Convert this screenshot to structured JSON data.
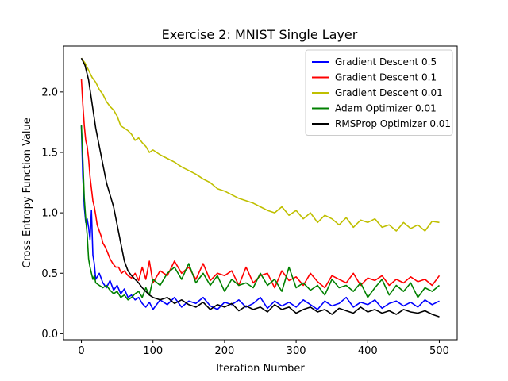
{
  "chart_data": {
    "type": "line",
    "title": "Exercise 2: MNIST Single Layer",
    "xlabel": "Iteration Number",
    "ylabel": "Cross Entropy Function Value",
    "xlim": [
      -25,
      525
    ],
    "ylim": [
      -0.05,
      2.38
    ],
    "xticks": [
      0,
      100,
      200,
      300,
      400,
      500
    ],
    "yticks": [
      0.0,
      0.5,
      1.0,
      1.5,
      2.0
    ],
    "xtick_labels": [
      "0",
      "100",
      "200",
      "300",
      "400",
      "500"
    ],
    "ytick_labels": [
      "0.0",
      "0.5",
      "1.0",
      "1.5",
      "2.0"
    ],
    "legend_position": "top-right",
    "grid": false,
    "series": [
      {
        "name": "Gradient Descent 0.5",
        "color": "#0000ff",
        "x": [
          0,
          2,
          4,
          6,
          8,
          10,
          12,
          14,
          16,
          18,
          20,
          25,
          30,
          35,
          40,
          45,
          50,
          55,
          60,
          65,
          70,
          75,
          80,
          85,
          90,
          95,
          100,
          110,
          120,
          130,
          140,
          150,
          160,
          170,
          180,
          190,
          200,
          210,
          220,
          230,
          240,
          250,
          260,
          270,
          280,
          290,
          300,
          310,
          320,
          330,
          340,
          350,
          360,
          370,
          380,
          390,
          400,
          410,
          420,
          430,
          440,
          450,
          460,
          470,
          480,
          490,
          500
        ],
        "y": [
          1.72,
          1.3,
          1.05,
          0.92,
          0.95,
          0.88,
          0.78,
          1.02,
          0.65,
          0.58,
          0.45,
          0.5,
          0.42,
          0.38,
          0.44,
          0.36,
          0.4,
          0.33,
          0.37,
          0.3,
          0.32,
          0.28,
          0.3,
          0.25,
          0.22,
          0.26,
          0.2,
          0.28,
          0.24,
          0.3,
          0.22,
          0.27,
          0.25,
          0.3,
          0.23,
          0.2,
          0.26,
          0.24,
          0.28,
          0.22,
          0.25,
          0.3,
          0.21,
          0.27,
          0.23,
          0.26,
          0.22,
          0.28,
          0.24,
          0.2,
          0.27,
          0.23,
          0.25,
          0.3,
          0.22,
          0.26,
          0.24,
          0.28,
          0.21,
          0.25,
          0.27,
          0.23,
          0.26,
          0.22,
          0.28,
          0.24,
          0.27
        ]
      },
      {
        "name": "Gradient Descent 0.1",
        "color": "#ff0000",
        "x": [
          0,
          2,
          4,
          6,
          8,
          10,
          12,
          14,
          16,
          18,
          20,
          22,
          25,
          28,
          30,
          33,
          36,
          40,
          44,
          48,
          52,
          56,
          60,
          65,
          70,
          75,
          80,
          85,
          90,
          95,
          100,
          110,
          120,
          130,
          140,
          150,
          160,
          170,
          180,
          190,
          200,
          210,
          220,
          230,
          240,
          250,
          260,
          270,
          280,
          290,
          300,
          310,
          320,
          330,
          340,
          350,
          360,
          370,
          380,
          390,
          400,
          410,
          420,
          430,
          440,
          450,
          460,
          470,
          480,
          490,
          500
        ],
        "y": [
          2.11,
          1.9,
          1.72,
          1.6,
          1.55,
          1.45,
          1.3,
          1.2,
          1.1,
          1.05,
          0.98,
          0.9,
          0.85,
          0.8,
          0.75,
          0.72,
          0.68,
          0.62,
          0.58,
          0.55,
          0.55,
          0.5,
          0.52,
          0.48,
          0.46,
          0.5,
          0.44,
          0.55,
          0.45,
          0.6,
          0.42,
          0.52,
          0.48,
          0.6,
          0.5,
          0.55,
          0.45,
          0.58,
          0.44,
          0.5,
          0.48,
          0.52,
          0.4,
          0.55,
          0.42,
          0.48,
          0.5,
          0.38,
          0.52,
          0.44,
          0.47,
          0.4,
          0.5,
          0.43,
          0.38,
          0.48,
          0.45,
          0.42,
          0.5,
          0.4,
          0.46,
          0.44,
          0.48,
          0.4,
          0.45,
          0.42,
          0.47,
          0.43,
          0.45,
          0.4,
          0.48
        ]
      },
      {
        "name": "Gradient Descent 0.01",
        "color": "#bfbf00",
        "x": [
          0,
          5,
          10,
          15,
          20,
          25,
          30,
          35,
          40,
          45,
          50,
          55,
          60,
          65,
          70,
          75,
          80,
          85,
          90,
          95,
          100,
          110,
          120,
          130,
          140,
          150,
          160,
          170,
          180,
          190,
          200,
          210,
          220,
          230,
          240,
          250,
          260,
          270,
          280,
          290,
          300,
          310,
          320,
          330,
          340,
          350,
          360,
          370,
          380,
          390,
          400,
          410,
          420,
          430,
          440,
          450,
          460,
          470,
          480,
          490,
          500
        ],
        "y": [
          2.28,
          2.24,
          2.18,
          2.12,
          2.08,
          2.02,
          1.98,
          1.92,
          1.88,
          1.85,
          1.8,
          1.72,
          1.7,
          1.68,
          1.65,
          1.6,
          1.62,
          1.58,
          1.55,
          1.5,
          1.52,
          1.48,
          1.45,
          1.42,
          1.38,
          1.35,
          1.32,
          1.28,
          1.25,
          1.2,
          1.18,
          1.15,
          1.12,
          1.1,
          1.08,
          1.05,
          1.02,
          1.0,
          1.05,
          0.98,
          1.02,
          0.95,
          1.0,
          0.92,
          0.98,
          0.95,
          0.9,
          0.96,
          0.88,
          0.94,
          0.92,
          0.95,
          0.88,
          0.9,
          0.85,
          0.92,
          0.87,
          0.9,
          0.85,
          0.93,
          0.92
        ]
      },
      {
        "name": "Adam Optimizer 0.01",
        "color": "#008000",
        "x": [
          0,
          2,
          4,
          6,
          8,
          10,
          12,
          14,
          16,
          18,
          20,
          25,
          30,
          35,
          40,
          45,
          50,
          55,
          60,
          65,
          70,
          75,
          80,
          85,
          90,
          95,
          100,
          110,
          120,
          130,
          140,
          150,
          160,
          170,
          180,
          190,
          200,
          210,
          220,
          230,
          240,
          250,
          260,
          270,
          280,
          290,
          300,
          310,
          320,
          330,
          340,
          350,
          360,
          370,
          380,
          390,
          400,
          410,
          420,
          430,
          440,
          450,
          460,
          470,
          480,
          490,
          500
        ],
        "y": [
          1.73,
          1.45,
          1.12,
          0.95,
          0.82,
          0.62,
          0.55,
          0.5,
          0.45,
          0.48,
          0.42,
          0.4,
          0.38,
          0.4,
          0.36,
          0.33,
          0.35,
          0.3,
          0.32,
          0.28,
          0.3,
          0.33,
          0.35,
          0.3,
          0.38,
          0.32,
          0.45,
          0.4,
          0.5,
          0.55,
          0.45,
          0.58,
          0.42,
          0.5,
          0.4,
          0.48,
          0.35,
          0.45,
          0.4,
          0.42,
          0.38,
          0.5,
          0.4,
          0.45,
          0.35,
          0.55,
          0.38,
          0.42,
          0.36,
          0.4,
          0.32,
          0.45,
          0.38,
          0.4,
          0.35,
          0.42,
          0.3,
          0.38,
          0.45,
          0.32,
          0.4,
          0.35,
          0.42,
          0.3,
          0.38,
          0.35,
          0.4
        ]
      },
      {
        "name": "RMSProp Optimizer 0.01",
        "color": "#000000",
        "x": [
          0,
          5,
          10,
          15,
          20,
          25,
          30,
          35,
          40,
          45,
          50,
          55,
          60,
          65,
          70,
          75,
          80,
          85,
          90,
          95,
          100,
          110,
          120,
          130,
          140,
          150,
          160,
          170,
          180,
          190,
          200,
          210,
          220,
          230,
          240,
          250,
          260,
          270,
          280,
          290,
          300,
          310,
          320,
          330,
          340,
          350,
          360,
          370,
          380,
          390,
          400,
          410,
          420,
          430,
          440,
          450,
          460,
          470,
          480,
          490,
          500
        ],
        "y": [
          2.28,
          2.22,
          2.1,
          1.9,
          1.7,
          1.55,
          1.4,
          1.25,
          1.15,
          1.05,
          0.9,
          0.75,
          0.6,
          0.52,
          0.48,
          0.45,
          0.42,
          0.38,
          0.35,
          0.32,
          0.3,
          0.28,
          0.3,
          0.25,
          0.28,
          0.24,
          0.22,
          0.26,
          0.2,
          0.24,
          0.22,
          0.25,
          0.19,
          0.23,
          0.2,
          0.22,
          0.18,
          0.24,
          0.2,
          0.22,
          0.17,
          0.2,
          0.22,
          0.18,
          0.2,
          0.16,
          0.21,
          0.19,
          0.17,
          0.22,
          0.18,
          0.2,
          0.17,
          0.19,
          0.16,
          0.2,
          0.18,
          0.17,
          0.19,
          0.16,
          0.14
        ]
      }
    ]
  }
}
